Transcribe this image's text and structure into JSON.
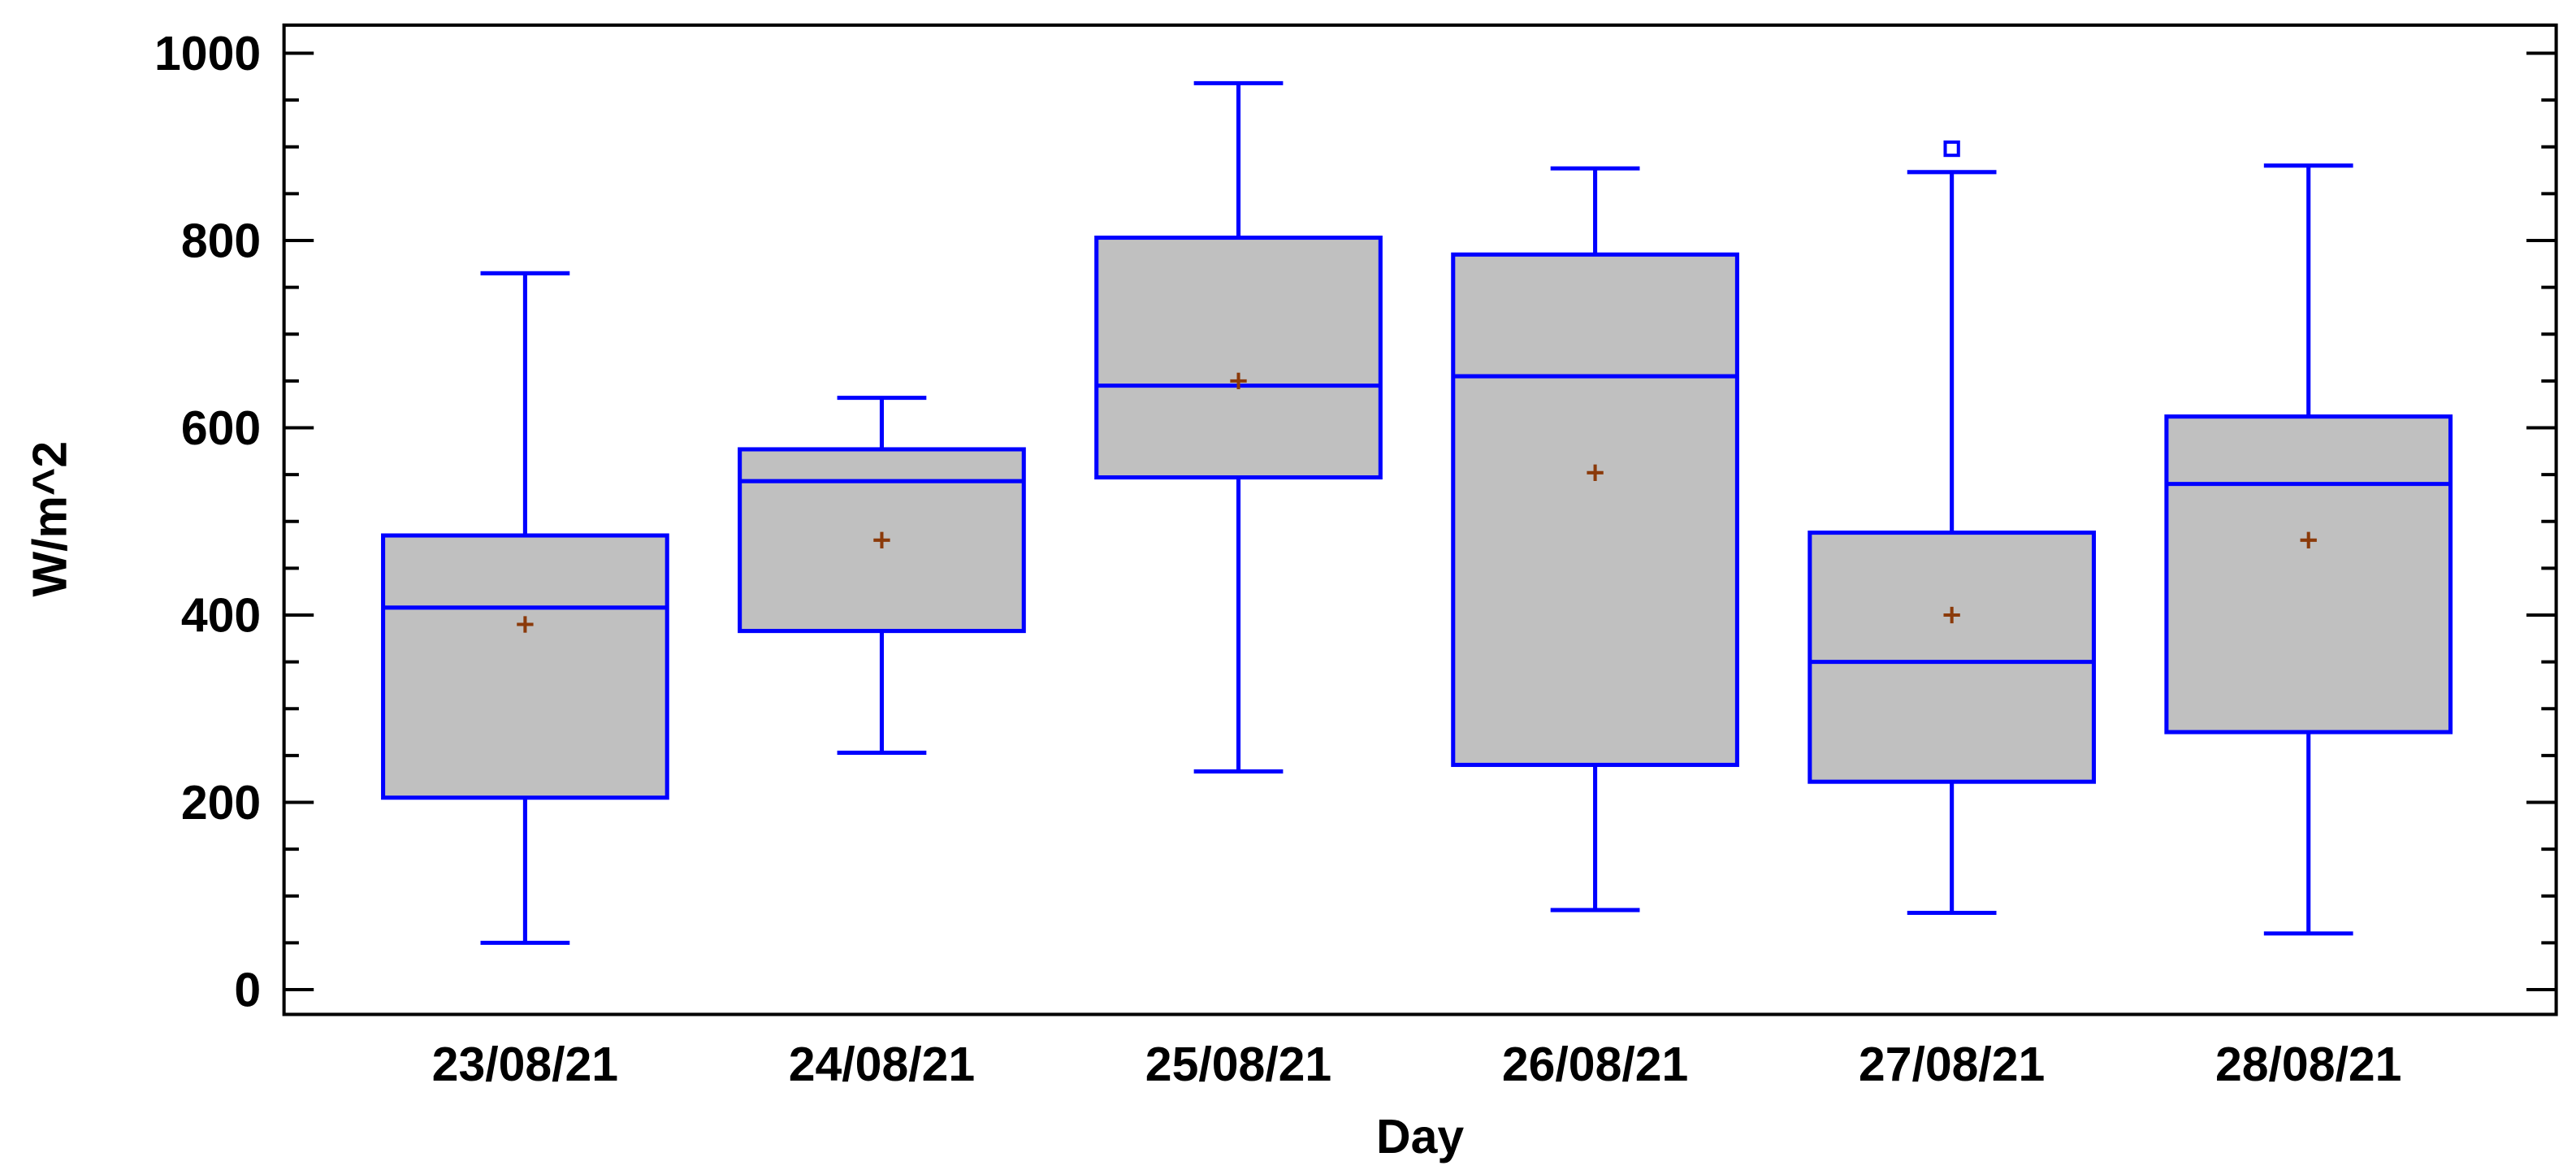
{
  "chart_data": {
    "type": "box",
    "title": "",
    "xlabel": "Day",
    "ylabel": "W/m^2",
    "ylim": [
      -30,
      1030
    ],
    "yticks": [
      0,
      200,
      400,
      600,
      800,
      1000
    ],
    "yticks_labels": [
      "0",
      "200",
      "400",
      "600",
      "800",
      "1000"
    ],
    "categories": [
      "23/08/21",
      "24/08/21",
      "25/08/21",
      "26/08/21",
      "27/08/21",
      "28/08/21"
    ],
    "boxes": [
      {
        "category": "23/08/21",
        "min": 50,
        "q1": 205,
        "median": 408,
        "q3": 485,
        "max": 765,
        "mean": 390,
        "outliers": []
      },
      {
        "category": "24/08/21",
        "min": 253,
        "q1": 383,
        "median": 543,
        "q3": 577,
        "max": 632,
        "mean": 480,
        "outliers": []
      },
      {
        "category": "25/08/21",
        "min": 233,
        "q1": 547,
        "median": 645,
        "q3": 803,
        "max": 968,
        "mean": 650,
        "outliers": []
      },
      {
        "category": "26/08/21",
        "min": 85,
        "q1": 240,
        "median": 655,
        "q3": 785,
        "max": 877,
        "mean": 552,
        "outliers": []
      },
      {
        "category": "27/08/21",
        "min": 82,
        "q1": 222,
        "median": 350,
        "q3": 488,
        "max": 873,
        "mean": 400,
        "outliers": [
          898
        ]
      },
      {
        "category": "28/08/21",
        "min": 60,
        "q1": 275,
        "median": 540,
        "q3": 612,
        "max": 880,
        "mean": 480,
        "outliers": []
      }
    ],
    "grid": false,
    "colors": {
      "box_fill": "#c0c0c0",
      "box_stroke": "#0000ff",
      "mean_marker": "#8b3a0a",
      "axis": "#000000"
    }
  }
}
